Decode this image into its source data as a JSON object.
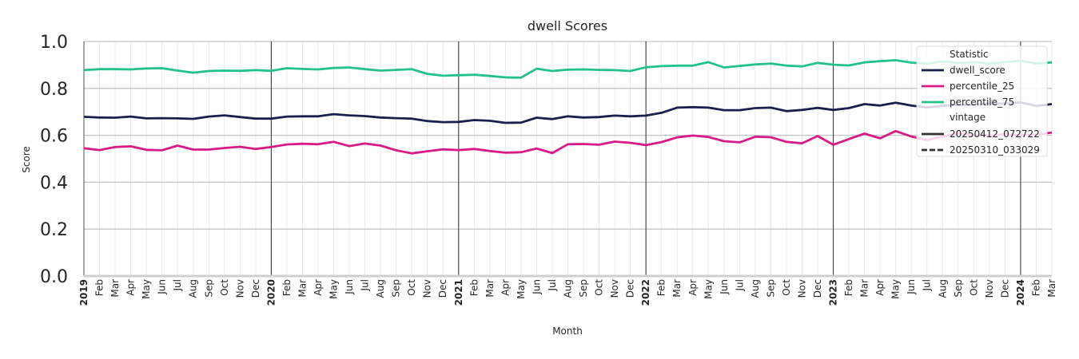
{
  "chart_data": {
    "type": "line",
    "title": "dwell Scores",
    "xlabel": "Month",
    "ylabel": "Score",
    "ylim": [
      0.0,
      1.0
    ],
    "yticks": [
      "0.0",
      "0.2",
      "0.4",
      "0.6",
      "0.8",
      "1.0"
    ],
    "grid": true,
    "x_start": "2019-01",
    "x_end": "2024-02",
    "year_labels": [
      "2019",
      "2020",
      "2021",
      "2022",
      "2023",
      "2024"
    ],
    "month_labels": [
      "Feb",
      "Mar",
      "Apr",
      "May",
      "Jun",
      "Jul",
      "Aug",
      "Sep",
      "Oct",
      "Nov",
      "Dec"
    ],
    "legend": {
      "placement": "top-right",
      "statistic_title": "Statistic",
      "vintage_title": "vintage",
      "vintages": [
        {
          "name": "20250412_072722",
          "style": "solid"
        },
        {
          "name": "20250310_033029",
          "style": "dashed"
        }
      ]
    },
    "series": [
      {
        "name": "dwell_score",
        "color": "#1b1f4d",
        "values": [
          0.679,
          0.676,
          0.675,
          0.68,
          0.672,
          0.673,
          0.672,
          0.67,
          0.68,
          0.685,
          0.678,
          0.671,
          0.671,
          0.68,
          0.681,
          0.681,
          0.69,
          0.685,
          0.682,
          0.676,
          0.673,
          0.671,
          0.661,
          0.656,
          0.657,
          0.665,
          0.662,
          0.653,
          0.654,
          0.675,
          0.669,
          0.681,
          0.676,
          0.678,
          0.684,
          0.681,
          0.684,
          0.696,
          0.718,
          0.72,
          0.718,
          0.707,
          0.707,
          0.716,
          0.718,
          0.703,
          0.708,
          0.717,
          0.708,
          0.716,
          0.733,
          0.727,
          0.739,
          0.727,
          0.719,
          0.726,
          0.73,
          0.73,
          0.735,
          0.735,
          0.74,
          0.725,
          0.733
        ]
      },
      {
        "name": "percentile_25",
        "color": "#d81b86",
        "values": [
          0.545,
          0.537,
          0.55,
          0.553,
          0.538,
          0.536,
          0.556,
          0.539,
          0.539,
          0.546,
          0.551,
          0.542,
          0.55,
          0.561,
          0.564,
          0.562,
          0.572,
          0.554,
          0.565,
          0.556,
          0.536,
          0.523,
          0.532,
          0.54,
          0.537,
          0.542,
          0.533,
          0.526,
          0.528,
          0.544,
          0.524,
          0.562,
          0.563,
          0.56,
          0.573,
          0.568,
          0.558,
          0.571,
          0.591,
          0.599,
          0.593,
          0.575,
          0.57,
          0.594,
          0.592,
          0.572,
          0.566,
          0.597,
          0.56,
          0.584,
          0.607,
          0.587,
          0.618,
          0.595,
          0.58,
          0.595,
          0.608,
          0.6,
          0.598,
          0.605,
          0.6,
          0.602,
          0.612
        ]
      },
      {
        "name": "percentile_75",
        "color": "#23c28b",
        "values": [
          0.878,
          0.882,
          0.882,
          0.881,
          0.885,
          0.886,
          0.876,
          0.867,
          0.874,
          0.876,
          0.875,
          0.878,
          0.875,
          0.886,
          0.883,
          0.881,
          0.887,
          0.889,
          0.882,
          0.876,
          0.879,
          0.882,
          0.862,
          0.854,
          0.856,
          0.858,
          0.853,
          0.847,
          0.846,
          0.884,
          0.874,
          0.88,
          0.881,
          0.879,
          0.878,
          0.874,
          0.89,
          0.895,
          0.897,
          0.897,
          0.912,
          0.889,
          0.896,
          0.902,
          0.906,
          0.897,
          0.894,
          0.909,
          0.901,
          0.898,
          0.911,
          0.916,
          0.92,
          0.91,
          0.905,
          0.915,
          0.908,
          0.912,
          0.906,
          0.912,
          0.918,
          0.906,
          0.911
        ]
      }
    ]
  }
}
